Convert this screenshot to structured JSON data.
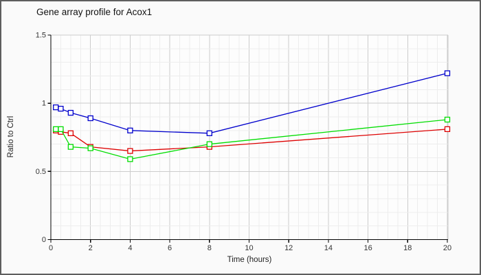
{
  "window": {
    "background": "#fafafa",
    "border_color": "#5e5e5e"
  },
  "chart_data": {
    "type": "line",
    "title": "Gene array profile for Acox1",
    "xlabel": "Time (hours)",
    "ylabel": "Ratio to Ctrl",
    "xlim": [
      0,
      20
    ],
    "ylim": [
      0,
      1.5
    ],
    "x": [
      0.25,
      0.5,
      1,
      2,
      4,
      8,
      20
    ],
    "series": [
      {
        "name": "red-series",
        "color": "#dd0000",
        "values": [
          0.8,
          0.79,
          0.78,
          0.68,
          0.65,
          0.68,
          0.81
        ]
      },
      {
        "name": "green-series",
        "color": "#00dd00",
        "values": [
          0.81,
          0.81,
          0.68,
          0.67,
          0.59,
          0.7,
          0.88
        ]
      },
      {
        "name": "blue-series",
        "color": "#0000cc",
        "values": [
          0.97,
          0.96,
          0.93,
          0.89,
          0.8,
          0.78,
          1.22
        ]
      }
    ],
    "marker": "open-square",
    "x_major_ticks": [
      0,
      2,
      4,
      6,
      8,
      10,
      12,
      14,
      16,
      18,
      20
    ],
    "x_tick_labels": [
      "0",
      "2",
      "4",
      "6",
      "8",
      "10",
      "12",
      "14",
      "16",
      "18",
      "20"
    ],
    "x_minor_step": 0.5,
    "y_major_ticks": [
      0,
      0.5,
      1,
      1.5
    ],
    "y_tick_labels": [
      "0",
      "0.5",
      "1",
      "1.5"
    ],
    "y_minor_step": 0.1,
    "grid": {
      "minor_color": "#ededed",
      "major_color": "#cccccc",
      "plot_background": "#fdfdfd"
    },
    "axis_color": "#000000",
    "text_color": "#333333",
    "title_color": "#111111",
    "legend": "none"
  }
}
